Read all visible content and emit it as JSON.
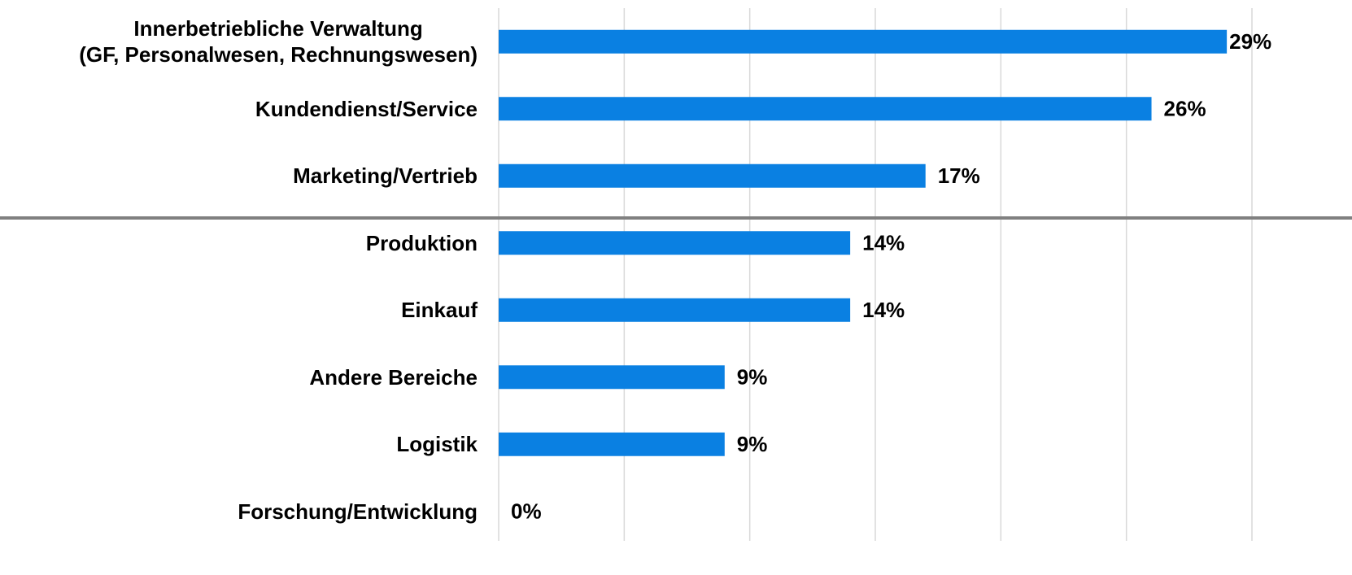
{
  "chart_data": {
    "type": "bar",
    "orientation": "horizontal",
    "categories": [
      "Innerbetriebliche Verwaltung\n(GF, Personalwesen, Rechnungswesen)",
      "Kundendienst/Service",
      "Marketing/Vertrieb",
      "Produktion",
      "Einkauf",
      "Andere Bereiche",
      "Logistik",
      "Forschung/Entwicklung"
    ],
    "values": [
      29,
      26,
      17,
      14,
      14,
      9,
      9,
      0
    ],
    "value_labels": [
      "29%",
      "26%",
      "17%",
      "14%",
      "14%",
      "9%",
      "9%",
      "0%"
    ],
    "color": "#0a80e2",
    "xlim": [
      0,
      30
    ],
    "xticks": [
      0,
      5,
      10,
      15,
      20,
      25,
      30
    ],
    "grid": true
  }
}
